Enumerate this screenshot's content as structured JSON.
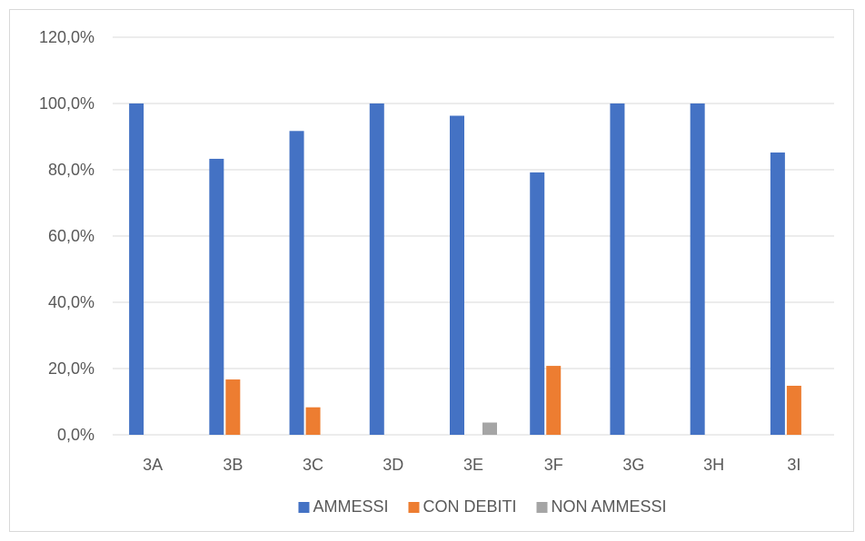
{
  "chart_data": {
    "type": "bar",
    "categories": [
      "3A",
      "3B",
      "3C",
      "3D",
      "3E",
      "3F",
      "3G",
      "3H",
      "3I"
    ],
    "series": [
      {
        "name": "AMMESSI",
        "color": "#4472C4",
        "values": [
          100.0,
          83.3,
          91.7,
          100.0,
          96.3,
          79.2,
          100.0,
          100.0,
          85.2
        ]
      },
      {
        "name": "CON DEBITI",
        "color": "#ED7D31",
        "values": [
          0.0,
          16.7,
          8.3,
          0.0,
          0.0,
          20.8,
          0.0,
          0.0,
          14.8
        ]
      },
      {
        "name": "NON AMMESSI",
        "color": "#A5A5A5",
        "values": [
          0.0,
          0.0,
          0.0,
          0.0,
          3.7,
          0.0,
          0.0,
          0.0,
          0.0
        ]
      }
    ],
    "yticks": [
      "0,0%",
      "20,0%",
      "40,0%",
      "60,0%",
      "80,0%",
      "100,0%",
      "120,0%"
    ],
    "ylim": [
      0,
      120
    ],
    "gridlines": true,
    "legend_position": "bottom"
  }
}
